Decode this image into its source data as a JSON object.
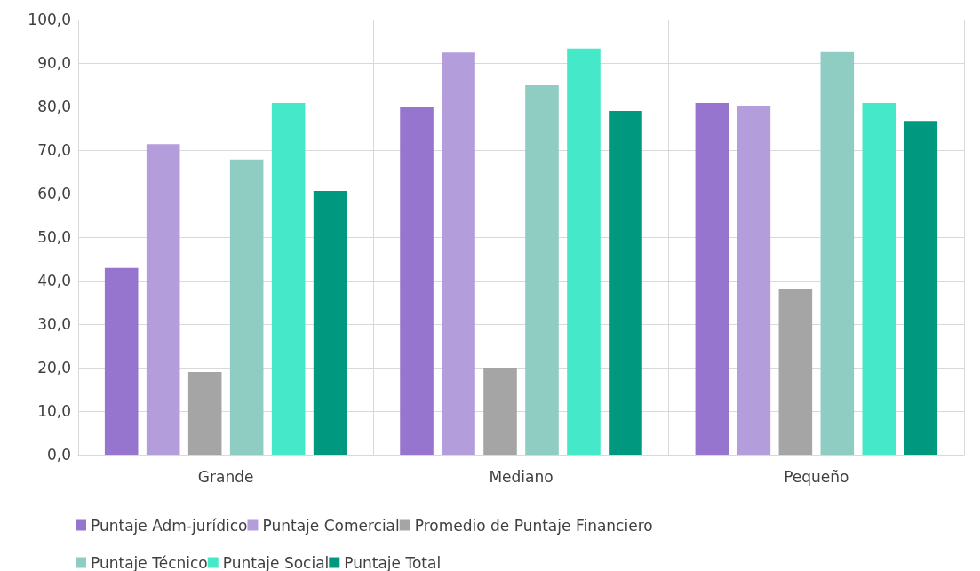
{
  "chart_data": {
    "type": "bar",
    "categories": [
      "Grande",
      "Mediano",
      "Pequeño"
    ],
    "series": [
      {
        "name": "Puntaje Adm-jurídico",
        "color": "#9575cd",
        "values": [
          42.9,
          80.0,
          80.8
        ]
      },
      {
        "name": "Puntaje Comercial",
        "color": "#b39ddb",
        "values": [
          71.4,
          92.4,
          80.2
        ]
      },
      {
        "name": "Promedio de Puntaje Financiero",
        "color": "#a5a5a5",
        "values": [
          19.0,
          20.0,
          38.0
        ]
      },
      {
        "name": "Puntaje Técnico",
        "color": "#8fcdc3",
        "values": [
          67.8,
          84.9,
          92.7
        ]
      },
      {
        "name": "Puntaje Social",
        "color": "#45e8c8",
        "values": [
          80.8,
          93.3,
          80.8
        ]
      },
      {
        "name": "Puntaje Total",
        "color": "#009980",
        "values": [
          60.6,
          79.0,
          76.7
        ]
      }
    ],
    "ylim": [
      0,
      100
    ],
    "yticks": [
      {
        "value": 0,
        "label": "0,0"
      },
      {
        "value": 10,
        "label": "10,0"
      },
      {
        "value": 20,
        "label": "20,0"
      },
      {
        "value": 30,
        "label": "30,0"
      },
      {
        "value": 40,
        "label": "40,0"
      },
      {
        "value": 50,
        "label": "50,0"
      },
      {
        "value": 60,
        "label": "60,0"
      },
      {
        "value": 70,
        "label": "70,0"
      },
      {
        "value": 80,
        "label": "80,0"
      },
      {
        "value": 90,
        "label": "90,0"
      },
      {
        "value": 100,
        "label": "100,0"
      }
    ],
    "grid": true,
    "legend": "bottom"
  }
}
